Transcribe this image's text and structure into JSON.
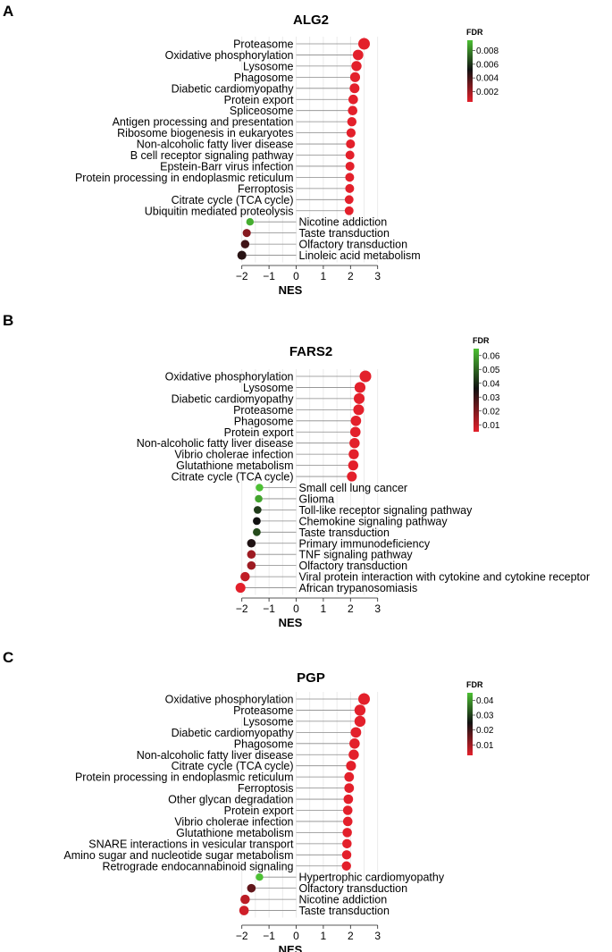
{
  "chart_data": [
    {
      "type": "lollipop",
      "panel": "A",
      "title": "ALG2",
      "xlabel": "NES",
      "xticks": [
        "-2",
        "-1",
        "0",
        "1",
        "2",
        "3"
      ],
      "xlim": [
        -2.4,
        3.0
      ],
      "legend": {
        "title": "FDR",
        "ticks": [
          "0.008",
          "0.006",
          "0.004",
          "0.002"
        ],
        "tick_values": [
          0.008,
          0.006,
          0.004,
          0.002
        ],
        "range": [
          0.0005,
          0.0095
        ]
      },
      "terms": [
        {
          "name": "Proteasome",
          "nes": 2.5,
          "fdr": 0.0005
        },
        {
          "name": "Oxidative phosphorylation",
          "nes": 2.28,
          "fdr": 0.0005
        },
        {
          "name": "Lysosome",
          "nes": 2.22,
          "fdr": 0.0005
        },
        {
          "name": "Phagosome",
          "nes": 2.17,
          "fdr": 0.0005
        },
        {
          "name": "Diabetic cardiomyopathy",
          "nes": 2.15,
          "fdr": 0.0005
        },
        {
          "name": "Protein export",
          "nes": 2.1,
          "fdr": 0.0005
        },
        {
          "name": "Spliceosome",
          "nes": 2.08,
          "fdr": 0.0005
        },
        {
          "name": "Antigen processing and presentation",
          "nes": 2.05,
          "fdr": 0.0005
        },
        {
          "name": "Ribosome biogenesis in eukaryotes",
          "nes": 2.02,
          "fdr": 0.0005
        },
        {
          "name": "Non-alcoholic fatty liver disease",
          "nes": 2.0,
          "fdr": 0.0005
        },
        {
          "name": "B cell receptor signaling pathway",
          "nes": 1.98,
          "fdr": 0.0005
        },
        {
          "name": "Epstein-Barr virus infection",
          "nes": 1.98,
          "fdr": 0.0005
        },
        {
          "name": "Protein processing in endoplasmic reticulum",
          "nes": 1.97,
          "fdr": 0.0005
        },
        {
          "name": "Ferroptosis",
          "nes": 1.97,
          "fdr": 0.0005
        },
        {
          "name": "Citrate cycle (TCA cycle)",
          "nes": 1.95,
          "fdr": 0.0005
        },
        {
          "name": "Ubiquitin mediated proteolysis",
          "nes": 1.95,
          "fdr": 0.0005
        },
        {
          "name": "Nicotine addiction",
          "nes": -1.7,
          "fdr": 0.009
        },
        {
          "name": "Taste transduction",
          "nes": -1.82,
          "fdr": 0.0025
        },
        {
          "name": "Olfactory transduction",
          "nes": -1.88,
          "fdr": 0.004
        },
        {
          "name": "Linoleic acid metabolism",
          "nes": -2.0,
          "fdr": 0.0045
        }
      ]
    },
    {
      "type": "lollipop",
      "panel": "B",
      "title": "FARS2",
      "xlabel": "NES",
      "xticks": [
        "-2",
        "-1",
        "0",
        "1",
        "2",
        "3"
      ],
      "xlim": [
        -2.4,
        3.0
      ],
      "legend": {
        "title": "FDR",
        "ticks": [
          "0.06",
          "0.05",
          "0.04",
          "0.03",
          "0.02",
          "0.01"
        ],
        "tick_values": [
          0.06,
          0.05,
          0.04,
          0.03,
          0.02,
          0.01
        ],
        "range": [
          0.005,
          0.065
        ]
      },
      "terms": [
        {
          "name": "Oxidative phosphorylation",
          "nes": 2.55,
          "fdr": 0.005
        },
        {
          "name": "Lysosome",
          "nes": 2.35,
          "fdr": 0.005
        },
        {
          "name": "Diabetic cardiomyopathy",
          "nes": 2.32,
          "fdr": 0.005
        },
        {
          "name": "Proteasome",
          "nes": 2.3,
          "fdr": 0.005
        },
        {
          "name": "Phagosome",
          "nes": 2.2,
          "fdr": 0.005
        },
        {
          "name": "Protein export",
          "nes": 2.18,
          "fdr": 0.005
        },
        {
          "name": "Non-alcoholic fatty liver disease",
          "nes": 2.15,
          "fdr": 0.005
        },
        {
          "name": "Vibrio cholerae infection",
          "nes": 2.12,
          "fdr": 0.005
        },
        {
          "name": "Glutathione metabolism",
          "nes": 2.1,
          "fdr": 0.005
        },
        {
          "name": "Citrate cycle (TCA cycle)",
          "nes": 2.05,
          "fdr": 0.005
        },
        {
          "name": "Small cell lung cancer",
          "nes": -1.35,
          "fdr": 0.065
        },
        {
          "name": "Glioma",
          "nes": -1.38,
          "fdr": 0.06
        },
        {
          "name": "Toll-like receptor signaling pathway",
          "nes": -1.42,
          "fdr": 0.042
        },
        {
          "name": "Chemokine signaling pathway",
          "nes": -1.45,
          "fdr": 0.035
        },
        {
          "name": "Taste transduction",
          "nes": -1.45,
          "fdr": 0.045
        },
        {
          "name": "Primary immunodeficiency",
          "nes": -1.65,
          "fdr": 0.033
        },
        {
          "name": "TNF signaling pathway",
          "nes": -1.65,
          "fdr": 0.015
        },
        {
          "name": "Olfactory transduction",
          "nes": -1.65,
          "fdr": 0.015
        },
        {
          "name": "Viral protein interaction with cytokine and cytokine receptor",
          "nes": -1.88,
          "fdr": 0.01
        },
        {
          "name": "African trypanosomiasis",
          "nes": -2.05,
          "fdr": 0.005
        }
      ]
    },
    {
      "type": "lollipop",
      "panel": "C",
      "title": "PGP",
      "xlabel": "NES",
      "xticks": [
        "-2",
        "-1",
        "0",
        "1",
        "2",
        "3"
      ],
      "xlim": [
        -2.4,
        3.0
      ],
      "legend": {
        "title": "FDR",
        "ticks": [
          "0.04",
          "0.03",
          "0.02",
          "0.01"
        ],
        "tick_values": [
          0.04,
          0.03,
          0.02,
          0.01
        ],
        "range": [
          0.003,
          0.045
        ]
      },
      "terms": [
        {
          "name": "Oxidative phosphorylation",
          "nes": 2.5,
          "fdr": 0.003
        },
        {
          "name": "Proteasome",
          "nes": 2.35,
          "fdr": 0.003
        },
        {
          "name": "Lysosome",
          "nes": 2.35,
          "fdr": 0.003
        },
        {
          "name": "Diabetic cardiomyopathy",
          "nes": 2.2,
          "fdr": 0.003
        },
        {
          "name": "Phagosome",
          "nes": 2.15,
          "fdr": 0.003
        },
        {
          "name": "Non-alcoholic fatty liver disease",
          "nes": 2.12,
          "fdr": 0.003
        },
        {
          "name": "Citrate cycle (TCA cycle)",
          "nes": 2.02,
          "fdr": 0.003
        },
        {
          "name": "Protein processing in endoplasmic reticulum",
          "nes": 1.95,
          "fdr": 0.003
        },
        {
          "name": "Ferroptosis",
          "nes": 1.95,
          "fdr": 0.003
        },
        {
          "name": "Other glycan degradation",
          "nes": 1.92,
          "fdr": 0.003
        },
        {
          "name": "Protein export",
          "nes": 1.9,
          "fdr": 0.003
        },
        {
          "name": "Vibrio cholerae infection",
          "nes": 1.9,
          "fdr": 0.003
        },
        {
          "name": "Glutathione metabolism",
          "nes": 1.88,
          "fdr": 0.003
        },
        {
          "name": "SNARE interactions in vesicular transport",
          "nes": 1.87,
          "fdr": 0.003
        },
        {
          "name": "Amino sugar and nucleotide sugar metabolism",
          "nes": 1.86,
          "fdr": 0.003
        },
        {
          "name": "Retrograde endocannabinoid signaling",
          "nes": 1.85,
          "fdr": 0.003
        },
        {
          "name": "Hypertrophic cardiomyopathy",
          "nes": -1.35,
          "fdr": 0.045
        },
        {
          "name": "Olfactory transduction",
          "nes": -1.65,
          "fdr": 0.016
        },
        {
          "name": "Nicotine addiction",
          "nes": -1.88,
          "fdr": 0.007
        },
        {
          "name": "Taste transduction",
          "nes": -1.92,
          "fdr": 0.005
        }
      ]
    }
  ]
}
